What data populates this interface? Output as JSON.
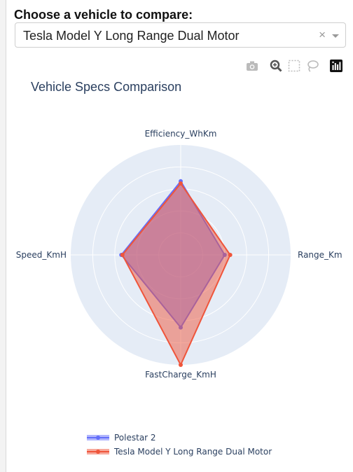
{
  "heading": "Choose a vehicle to compare:",
  "select": {
    "value": "Tesla Model Y Long Range Dual Motor",
    "clear_glyph": "×"
  },
  "modebar": {
    "icons": [
      "camera-icon",
      "zoom-icon",
      "box-select-icon",
      "lasso-icon",
      "plotly-logo-icon"
    ]
  },
  "colors": {
    "polar_bg": "#e5ecf6",
    "series1": "#636efa",
    "series2": "#ef553b",
    "title_text": "#2a3f5f"
  },
  "chart_data": {
    "type": "radar",
    "title": "Vehicle Specs Comparison",
    "axes": [
      "Efficiency_WhKm",
      "Range_Km",
      "FastCharge_KmH",
      "TopSpeed_KmH"
    ],
    "axis_labels_visible": [
      "Efficiency_WhKm",
      "Range_Km",
      "FastCharge_KmH",
      "Speed_KmH"
    ],
    "radial_range": [
      0,
      1
    ],
    "grid": true,
    "legend_position": "bottom-left",
    "series": [
      {
        "name": "Polestar  2",
        "values": [
          0.67,
          0.4,
          0.66,
          0.54
        ],
        "color": "#636efa"
      },
      {
        "name": "Tesla  Model Y Long Range Dual Motor",
        "values": [
          0.65,
          0.45,
          1.0,
          0.53
        ],
        "color": "#ef553b"
      }
    ]
  }
}
